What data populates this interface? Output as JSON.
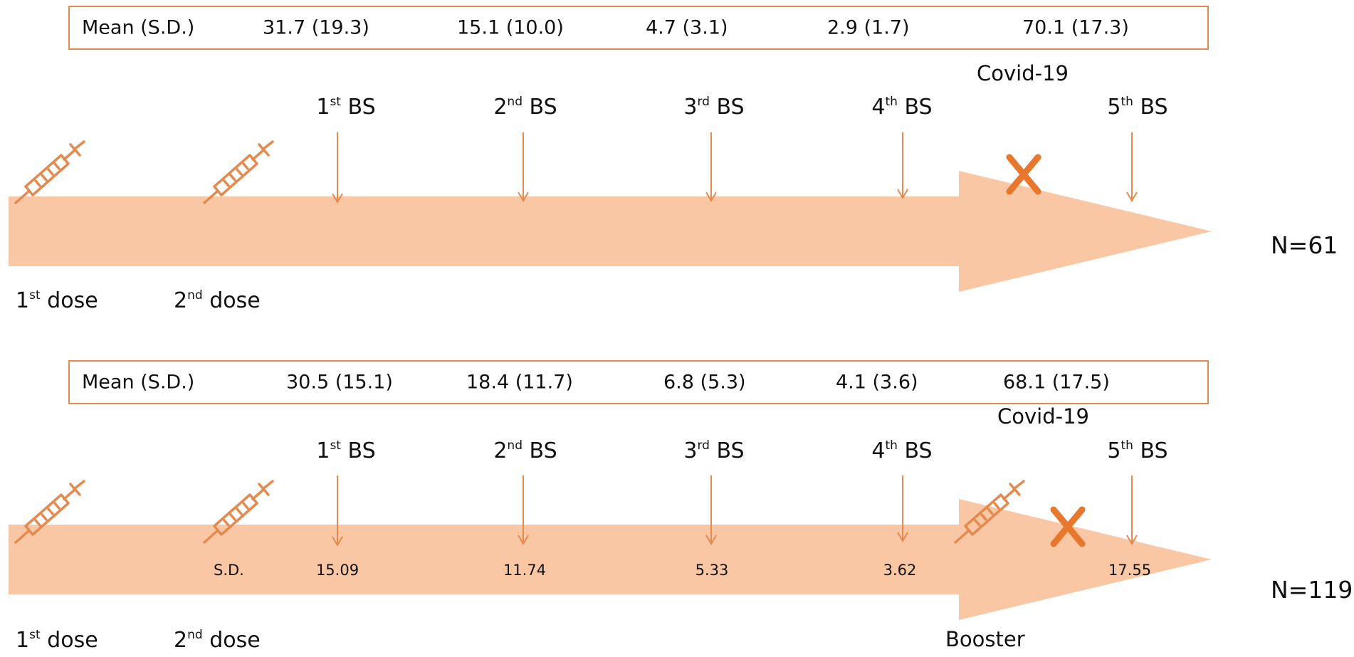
{
  "colors": {
    "accent": "#e58a4f",
    "band": "#f9c7a4",
    "text": "#111111"
  },
  "icons": {
    "vaccine": "syringe-icon",
    "infection": "cross-icon",
    "sampling": "down-arrow-icon"
  },
  "panels": [
    {
      "mean_label": "Mean (S.D.)",
      "means": [
        "31.7 (19.3)",
        "15.1 (10.0)",
        "4.7 (3.1)",
        "2.9 (1.7)",
        "70.1 (17.3)"
      ],
      "covid_label": "Covid-19",
      "bs": [
        {
          "num": "1",
          "suffix": "st",
          "label": "BS"
        },
        {
          "num": "2",
          "suffix": "nd",
          "label": "BS"
        },
        {
          "num": "3",
          "suffix": "rd",
          "label": "BS"
        },
        {
          "num": "4",
          "suffix": "th",
          "label": "BS"
        },
        {
          "num": "5",
          "suffix": "th",
          "label": "BS"
        }
      ],
      "doses": [
        {
          "num": "1",
          "suffix": "st",
          "label": "dose"
        },
        {
          "num": "2",
          "suffix": "nd",
          "label": "dose"
        }
      ],
      "n_label": "N=61"
    },
    {
      "mean_label": "Mean (S.D.)",
      "means": [
        "30.5 (15.1)",
        "18.4 (11.7)",
        "6.8 (5.3)",
        "4.1 (3.6)",
        "68.1 (17.5)"
      ],
      "covid_label": "Covid-19",
      "bs": [
        {
          "num": "1",
          "suffix": "st",
          "label": "BS"
        },
        {
          "num": "2",
          "suffix": "nd",
          "label": "BS"
        },
        {
          "num": "3",
          "suffix": "rd",
          "label": "BS"
        },
        {
          "num": "4",
          "suffix": "th",
          "label": "BS"
        },
        {
          "num": "5",
          "suffix": "th",
          "label": "BS"
        }
      ],
      "doses": [
        {
          "num": "1",
          "suffix": "st",
          "label": "dose"
        },
        {
          "num": "2",
          "suffix": "nd",
          "label": "dose"
        }
      ],
      "booster_label": "Booster",
      "sd_label": "S.D.",
      "sd_values": [
        "15.09",
        "11.74",
        "5.33",
        "3.62",
        "17.55"
      ],
      "n_label": "N=119"
    }
  ]
}
